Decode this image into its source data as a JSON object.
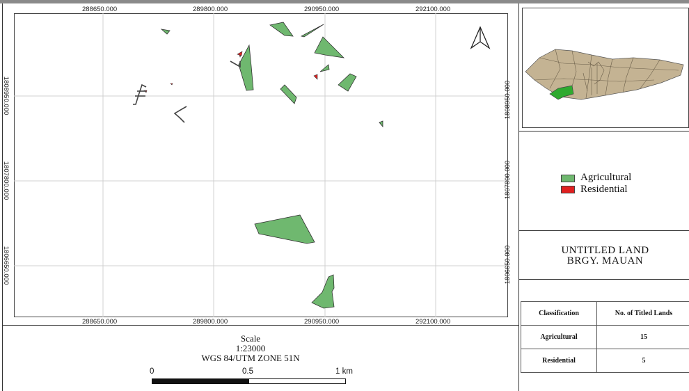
{
  "map": {
    "top_x_labels": [
      "288650.000",
      "289800.000",
      "290950.000",
      "292100.000"
    ],
    "bottom_x_labels": [
      "288650.000",
      "289800.000",
      "290950.000",
      "292100.000"
    ],
    "left_y_labels": [
      "1808950.000",
      "1807800.000",
      "1806650.000"
    ],
    "right_y_labels": [
      "1808950.000",
      "1807800.000",
      "1806650.000"
    ],
    "colors": {
      "agricultural": "#6fb86f",
      "residential": "#e02020",
      "grid": "#d0d0d0",
      "locator_land": "#c4b393",
      "locator_highlight": "#2faa2f"
    },
    "icons": {
      "north_arrow": "north-arrow-icon"
    }
  },
  "legend": {
    "items": [
      {
        "label": "Agricultural",
        "color": "#6fb86f"
      },
      {
        "label": "Residential",
        "color": "#e02020"
      }
    ]
  },
  "title": {
    "line1": "UNTITLED LAND",
    "line2": "BRGY. MAUAN"
  },
  "table": {
    "headers": [
      "Classification",
      "No. of Titled Lands"
    ],
    "rows": [
      [
        "Agricultural",
        "15"
      ],
      [
        "Residential",
        "5"
      ]
    ]
  },
  "scale": {
    "heading": "Scale",
    "ratio": "1:23000",
    "crs": "WGS 84/UTM ZONE 51N",
    "bar_labels": [
      "0",
      "0.5",
      "1 km"
    ]
  }
}
